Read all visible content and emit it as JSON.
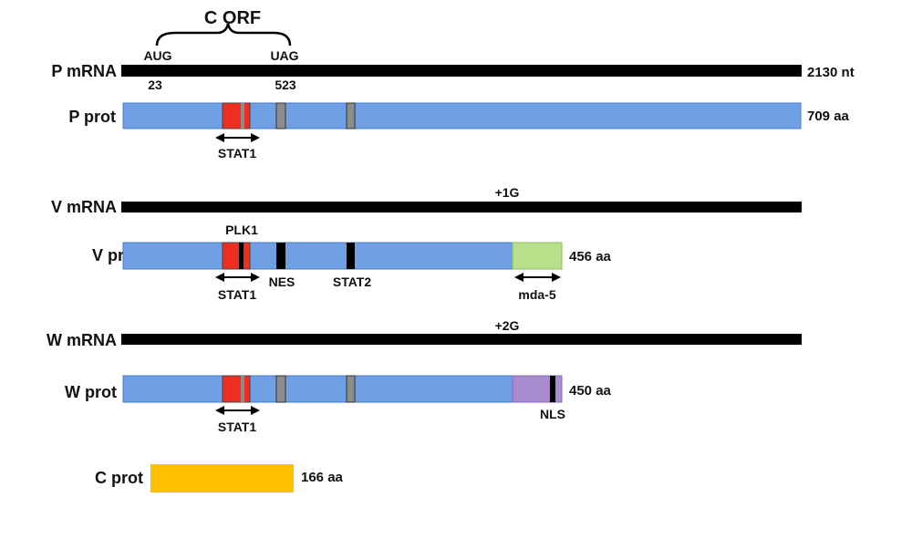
{
  "c_orf": {
    "label": "C ORF",
    "start_codon": "AUG",
    "stop_codon": "UAG",
    "start_pos": "23",
    "stop_pos": "523"
  },
  "p_mrna": {
    "label": "P mRNA",
    "length": "2130 nt"
  },
  "p_prot": {
    "label": "P prot",
    "length": "709 aa",
    "stat1": "STAT1"
  },
  "v_mrna": {
    "label": "V mRNA",
    "edit": "+1G"
  },
  "v_prot": {
    "label": "V prot",
    "length": "456 aa",
    "plk1": "PLK1",
    "stat1": "STAT1",
    "nes": "NES",
    "stat2": "STAT2",
    "mda5": "mda-5"
  },
  "w_mrna": {
    "label": "W mRNA",
    "edit": "+2G"
  },
  "w_prot": {
    "label": "W prot",
    "length": "450 aa",
    "stat1": "STAT1",
    "nls": "NLS"
  },
  "c_prot": {
    "label": "C prot",
    "length": "166 aa"
  },
  "colors": {
    "mrna": "#000000",
    "protein": "#6fa0e6",
    "protein_border": "#4a7bc4",
    "stat1_domain": "#ee2e1e",
    "motif_gray": "#8c8c8c",
    "v_unique": "#b6e08a",
    "w_unique": "#a98ccf",
    "c_protein": "#ffc000"
  }
}
